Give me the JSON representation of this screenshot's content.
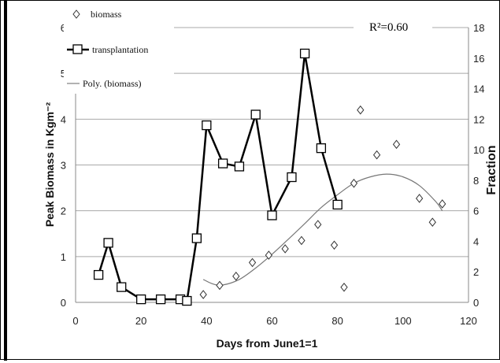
{
  "chart_data": {
    "type": "line",
    "title": "",
    "xlabel": "Days from June1=1",
    "ylabel": "Peak Biomass in Kgm⁻²",
    "ylabel_right": "Fraction",
    "xlim": [
      0,
      120
    ],
    "ylim": [
      0,
      6
    ],
    "ylim_right": [
      0,
      18
    ],
    "x_ticks": [
      "0",
      "20",
      "40",
      "60",
      "80",
      "100",
      "120"
    ],
    "y_ticks": [
      "0",
      "1",
      "2",
      "3",
      "4",
      "5",
      "6"
    ],
    "y_ticks_right": [
      "0",
      "2",
      "4",
      "6",
      "8",
      "10",
      "12",
      "14",
      "16",
      "18"
    ],
    "grid": true,
    "legend_position": "top-left",
    "annotation": "R²=0.60",
    "series": [
      {
        "name": "biomass",
        "kind": "scatter",
        "marker": "diamond",
        "axis": "left",
        "x": [
          39,
          44,
          49,
          54,
          59,
          64,
          69,
          74,
          79,
          82,
          85,
          87,
          92,
          98,
          105,
          109,
          112
        ],
        "y": [
          0.17,
          0.37,
          0.57,
          0.87,
          1.03,
          1.17,
          1.35,
          1.7,
          1.25,
          0.33,
          2.6,
          4.2,
          3.22,
          3.45,
          2.27,
          1.75,
          2.15
        ]
      },
      {
        "name": "transplantation",
        "kind": "line",
        "marker": "square",
        "axis": "right",
        "x": [
          7,
          10,
          14,
          20,
          26,
          32,
          34,
          37,
          40,
          45,
          50,
          55,
          60,
          66,
          70,
          75,
          80
        ],
        "y": [
          1.8,
          3.9,
          1.0,
          0.2,
          0.2,
          0.2,
          0.1,
          4.2,
          11.6,
          9.1,
          8.9,
          12.3,
          5.7,
          8.2,
          16.3,
          10.1,
          6.4
        ]
      },
      {
        "name": "Poly. (biomass)",
        "kind": "trendline",
        "axis": "left",
        "x": [
          39,
          42,
          45,
          50,
          55,
          60,
          65,
          70,
          75,
          80,
          85,
          90,
          95,
          100,
          105,
          110,
          112
        ],
        "y": [
          0.5,
          0.4,
          0.38,
          0.5,
          0.75,
          1.05,
          1.38,
          1.72,
          2.07,
          2.35,
          2.6,
          2.74,
          2.8,
          2.74,
          2.55,
          2.2,
          2.0
        ]
      }
    ]
  }
}
